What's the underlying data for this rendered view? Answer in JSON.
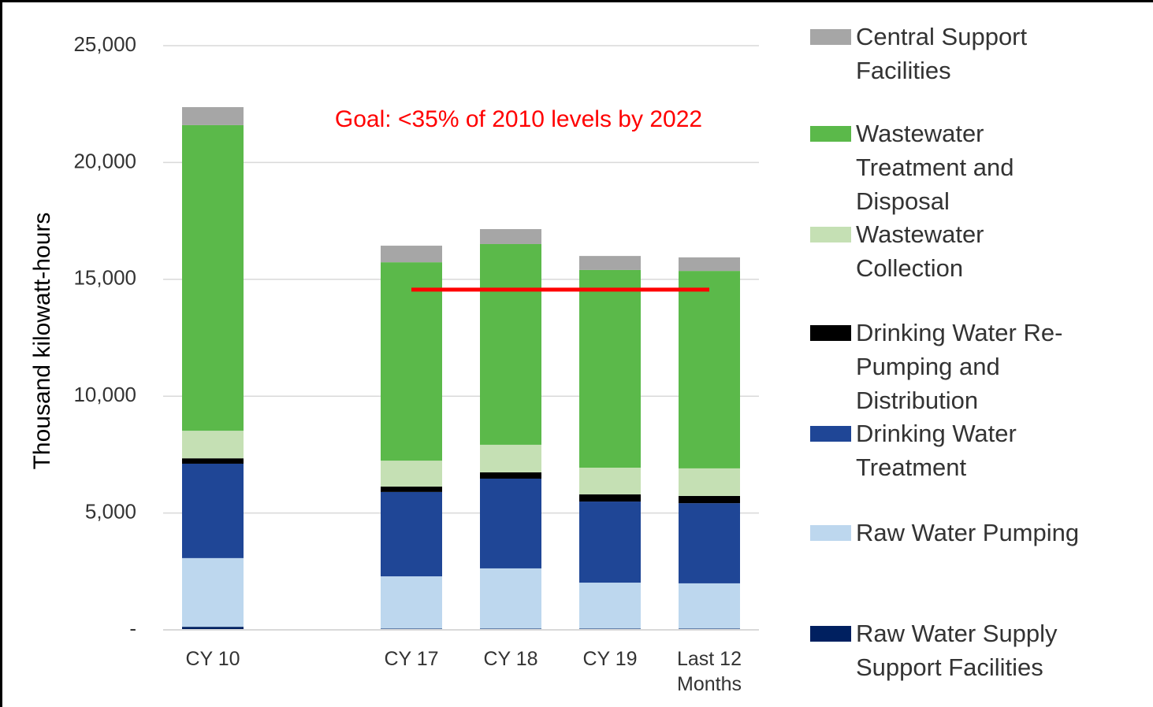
{
  "chart_data": {
    "type": "stacked_bar",
    "y_label": "Thousand kilowatt-hours",
    "annotation": "Goal: <35% of 2010 levels by 2022",
    "categories": [
      "CY 10",
      null,
      "CY 17",
      "CY 18",
      "CY 19",
      "Last 12 Months"
    ],
    "ylim": [
      0,
      25000
    ],
    "yticks": [
      {
        "value": 0,
        "label": "-"
      },
      {
        "value": 5000,
        "label": "5,000"
      },
      {
        "value": 10000,
        "label": "10,000"
      },
      {
        "value": 15000,
        "label": "15,000"
      },
      {
        "value": 20000,
        "label": "20,000"
      },
      {
        "value": 25000,
        "label": "25,000"
      }
    ],
    "grid": true,
    "legend": "right",
    "series": [
      {
        "name": "Raw Water Supply Support Facilities",
        "color": "#002060",
        "values": [
          130,
          null,
          50,
          50,
          50,
          50
        ]
      },
      {
        "name": "Raw Water Pumping",
        "color": "#bdd7ee",
        "values": [
          2940,
          null,
          2240,
          2580,
          1970,
          1940
        ]
      },
      {
        "name": "Drinking Water Treatment",
        "color": "#1f4696",
        "values": [
          4040,
          null,
          3610,
          3840,
          3470,
          3430
        ]
      },
      {
        "name": "Drinking Water Re-Pumping and Distribution",
        "color": "#000000",
        "values": [
          230,
          null,
          230,
          270,
          310,
          310
        ]
      },
      {
        "name": "Wastewater Collection",
        "color": "#c5e0b4",
        "values": [
          1180,
          null,
          1110,
          1180,
          1140,
          1180
        ]
      },
      {
        "name": "Wastewater Treatment and Disposal",
        "color": "#5bb94a",
        "values": [
          13080,
          null,
          8490,
          8590,
          8460,
          8450
        ]
      },
      {
        "name": "Central Support Facilities",
        "color": "#a6a6a6",
        "values": [
          770,
          null,
          710,
          640,
          600,
          580
        ]
      }
    ],
    "goal_line": {
      "color": "#ff0000",
      "values": [
        null,
        null,
        14560,
        14560,
        14560,
        14560
      ]
    }
  }
}
